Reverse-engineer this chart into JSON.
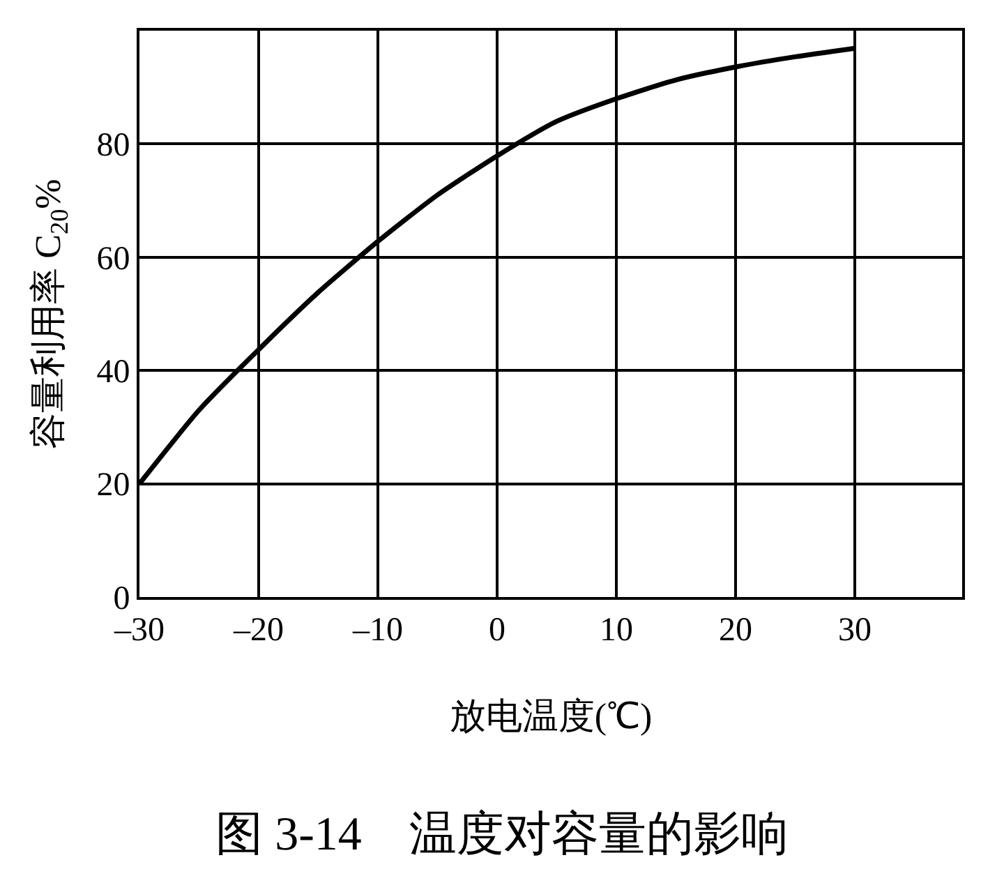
{
  "chart_data": {
    "type": "line",
    "title": "图 3-14　温度对容量的影响",
    "xlabel": "放电温度(℃)",
    "ylabel": "容量利用率 C$_{20}$%",
    "x": [
      -30,
      -25,
      -20,
      -15,
      -10,
      -5,
      0,
      5,
      10,
      15,
      20,
      25,
      30
    ],
    "series": [
      {
        "color": "#000000",
        "values": [
          20,
          33,
          43.7,
          53.8,
          62.8,
          71,
          77.9,
          84,
          88,
          91.3,
          93.6,
          95.4,
          96.9
        ]
      }
    ],
    "xlim": [
      -30,
      39
    ],
    "xticks": [
      {
        "value": -30,
        "label": "–30"
      },
      {
        "value": -20,
        "label": "–20"
      },
      {
        "value": -10,
        "label": "–10"
      },
      0,
      10,
      20,
      30
    ],
    "ylim": [
      0,
      100
    ],
    "yticks": [
      0,
      20,
      40,
      60,
      80,
      {
        "value": 100,
        "label": null
      }
    ],
    "grid": true,
    "legend": false,
    "marker": "none",
    "line_style": "solid"
  }
}
